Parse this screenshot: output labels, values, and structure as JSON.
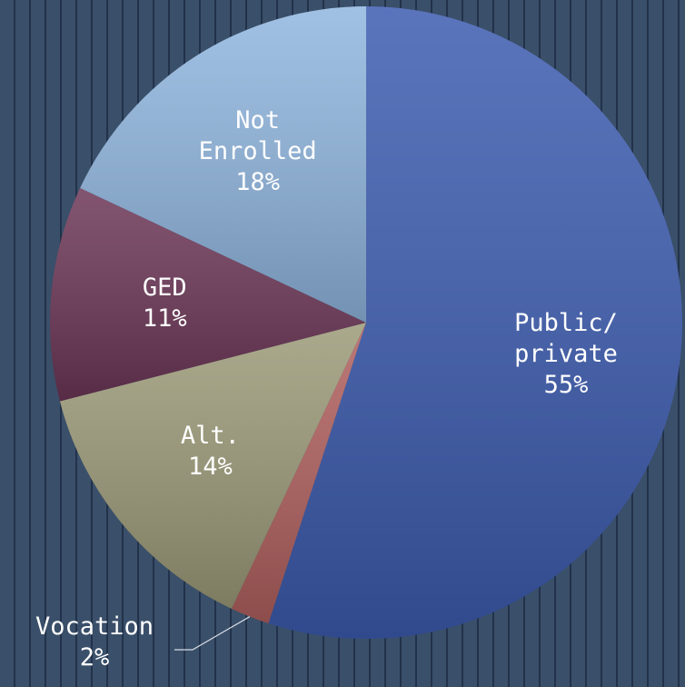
{
  "chart_data": {
    "type": "pie",
    "categories": [
      "Public/private",
      "Vocation",
      "Alt.",
      "GED",
      "Not Enrolled"
    ],
    "values": [
      55,
      2,
      14,
      11,
      18
    ],
    "value_labels": [
      "55%",
      "2%",
      "14%",
      "11%",
      "18%"
    ],
    "colors": [
      "#3d5cb0",
      "#b0605e",
      "#9c9a78",
      "#6c3656",
      "#90b6df"
    ],
    "start_angle": 0,
    "direction": "clockwise"
  }
}
